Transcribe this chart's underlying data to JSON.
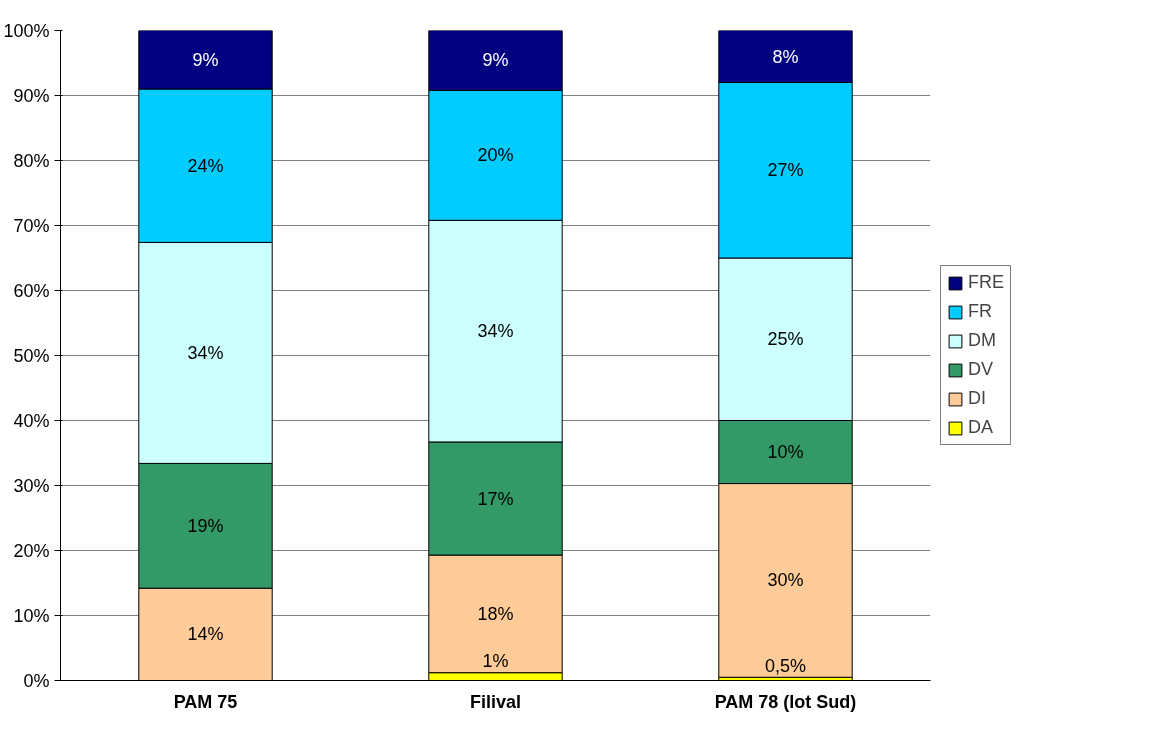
{
  "chart_data": {
    "type": "bar",
    "stacked": true,
    "categories": [
      "PAM 75",
      "Filival",
      "PAM 78 (lot Sud)"
    ],
    "series": [
      {
        "name": "DA",
        "color": "#ffff00",
        "values": [
          null,
          1.2,
          0.5
        ],
        "value_labels": [
          null,
          "1%",
          "0,5%"
        ]
      },
      {
        "name": "DI",
        "color": "#ffcc99",
        "values": [
          14.2,
          18.1,
          29.8
        ],
        "value_labels": [
          "14%",
          "18%",
          "30%"
        ]
      },
      {
        "name": "DV",
        "color": "#339966",
        "values": [
          19.2,
          17.4,
          9.7
        ],
        "value_labels": [
          "19%",
          "17%",
          "10%"
        ]
      },
      {
        "name": "DM",
        "color": "#ccffff",
        "values": [
          34.0,
          34.1,
          25.0
        ],
        "value_labels": [
          "34%",
          "34%",
          "25%"
        ]
      },
      {
        "name": "FR",
        "color": "#00ccff",
        "values": [
          23.6,
          20.0,
          27.0
        ],
        "value_labels": [
          "24%",
          "20%",
          "27%"
        ]
      },
      {
        "name": "FRE",
        "color": "#000080",
        "values": [
          9.0,
          9.2,
          8.0
        ],
        "value_labels": [
          "9%",
          "9%",
          "8%"
        ]
      }
    ],
    "ylim": [
      0,
      100
    ],
    "yticks": [
      {
        "value": 0,
        "label": "0%"
      },
      {
        "value": 10,
        "label": "10%"
      },
      {
        "value": 20,
        "label": "20%"
      },
      {
        "value": 30,
        "label": "30%"
      },
      {
        "value": 40,
        "label": "40%"
      },
      {
        "value": 50,
        "label": "50%"
      },
      {
        "value": 60,
        "label": "60%"
      },
      {
        "value": 70,
        "label": "70%"
      },
      {
        "value": 80,
        "label": "80%"
      },
      {
        "value": 90,
        "label": "90%"
      },
      {
        "value": 100,
        "label": "100%"
      }
    ],
    "grid": "y",
    "legend": "right"
  }
}
